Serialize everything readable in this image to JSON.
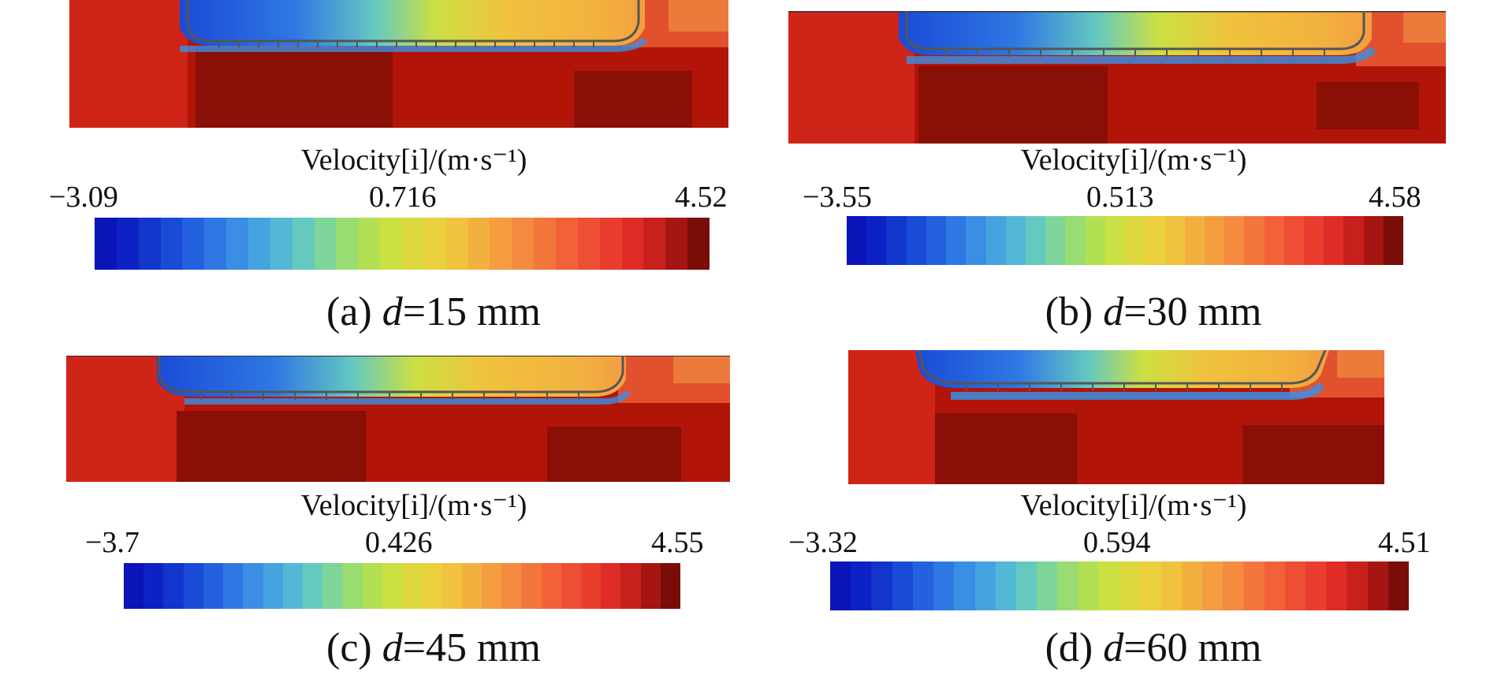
{
  "colormap": [
    "#0a14b8",
    "#0d22c4",
    "#1236cc",
    "#1a4bd6",
    "#2461de",
    "#2f78e3",
    "#3a8ee4",
    "#45a4e0",
    "#52b8d6",
    "#65c9c0",
    "#7ed59a",
    "#98dc72",
    "#b2e052",
    "#cbe043",
    "#ddd83d",
    "#ead03c",
    "#f0c23d",
    "#f2b13f",
    "#f49e40",
    "#f48b40",
    "#f3763d",
    "#f26239",
    "#ee4e34",
    "#e93d2e",
    "#df2c26",
    "#c8201c",
    "#a51612",
    "#7a0d08"
  ],
  "panels": [
    {
      "id": "a",
      "colorbar": {
        "title": "Velocity[i]/(m·s⁻¹)",
        "min": "−3.09",
        "mid": "0.716",
        "max": "4.52"
      },
      "caption": {
        "label": "(a)",
        "var": "d",
        "value": "=15 mm"
      }
    },
    {
      "id": "b",
      "colorbar": {
        "title": "Velocity[i]/(m·s⁻¹)",
        "min": "−3.55",
        "mid": "0.513",
        "max": "4.58"
      },
      "caption": {
        "label": "(b)",
        "var": "d",
        "value": "=30 mm"
      }
    },
    {
      "id": "c",
      "colorbar": {
        "title": "Velocity[i]/(m·s⁻¹)",
        "min": "−3.7",
        "mid": "0.426",
        "max": "4.55"
      },
      "caption": {
        "label": "(c)",
        "var": "d",
        "value": "=45 mm"
      }
    },
    {
      "id": "d",
      "colorbar": {
        "title": "Velocity[i]/(m·s⁻¹)",
        "min": "−3.32",
        "mid": "0.594",
        "max": "4.51"
      },
      "caption": {
        "label": "(d)",
        "var": "d",
        "value": "=60 mm"
      }
    }
  ]
}
